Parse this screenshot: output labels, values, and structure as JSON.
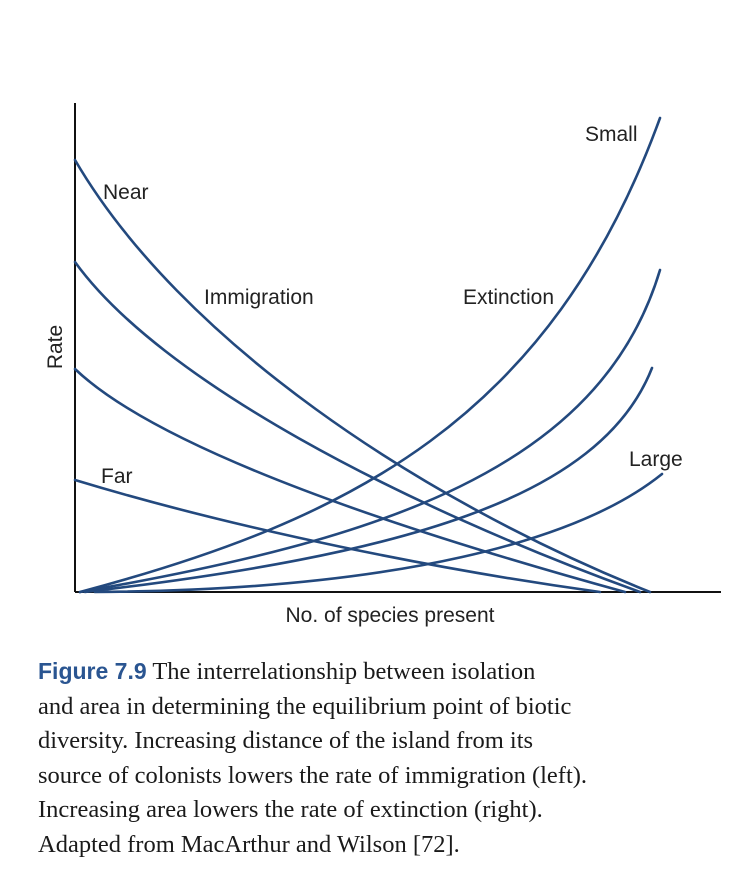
{
  "figure": {
    "y_axis_label": "Rate",
    "x_axis_label": "No. of species present",
    "curve_labels": {
      "near": "Near",
      "far": "Far",
      "immigration": "Immigration",
      "extinction": "Extinction",
      "small": "Small",
      "large": "Large"
    },
    "line_color": "#23497e",
    "axis_color": "#111111"
  },
  "caption": {
    "label": "Figure 7.9",
    "lines": [
      "The interrelationship between isolation",
      "and area in determining the equilibrium point of biotic",
      "diversity. Increasing distance of the island from its",
      "source of colonists lowers the rate of immigration (left).",
      "Increasing area lowers the rate of extinction (right).",
      "Adapted from MacArthur and Wilson [72]."
    ]
  }
}
